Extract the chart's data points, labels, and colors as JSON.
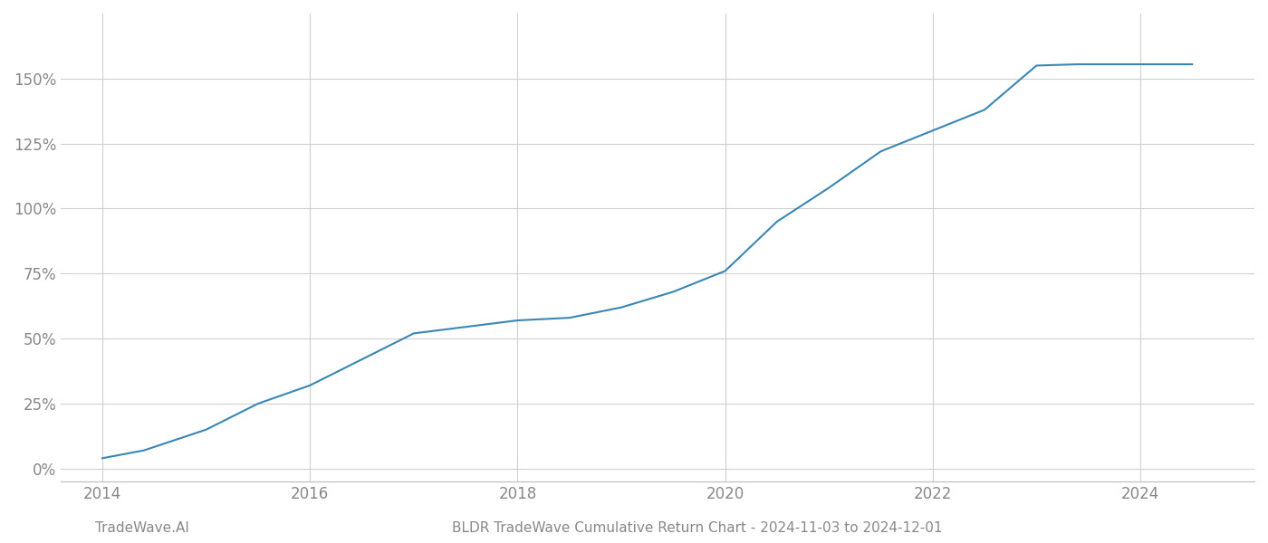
{
  "title": "BLDR TradeWave Cumulative Return Chart - 2024-11-03 to 2024-12-01",
  "watermark": "TradeWave.AI",
  "line_color": "#3a86b4",
  "background_color": "#ffffff",
  "grid_color": "#d0d0d0",
  "x_years": [
    2014.0,
    2014.4,
    2015.0,
    2015.5,
    2016.0,
    2016.5,
    2017.0,
    2017.4,
    2018.0,
    2018.5,
    2019.0,
    2019.5,
    2020.0,
    2020.5,
    2021.0,
    2021.5,
    2022.0,
    2022.5,
    2023.0,
    2023.4,
    2024.0,
    2024.5
  ],
  "y_values": [
    0.04,
    0.07,
    0.15,
    0.25,
    0.32,
    0.42,
    0.52,
    0.54,
    0.57,
    0.58,
    0.62,
    0.68,
    0.76,
    0.95,
    1.08,
    1.22,
    1.3,
    1.38,
    1.55,
    1.555,
    1.555,
    1.555
  ],
  "xlim": [
    2013.6,
    2025.1
  ],
  "ylim": [
    -0.05,
    1.75
  ],
  "yticks": [
    0.0,
    0.25,
    0.5,
    0.75,
    1.0,
    1.25,
    1.5
  ],
  "ytick_labels": [
    "0%",
    "25%",
    "50%",
    "75%",
    "100%",
    "125%",
    "150%"
  ],
  "xticks": [
    2014,
    2016,
    2018,
    2020,
    2022,
    2024
  ],
  "label_color": "#888888",
  "title_color": "#888888",
  "watermark_color": "#888888",
  "line_width": 1.5,
  "figsize": [
    14.0,
    6.0
  ],
  "dpi": 100
}
